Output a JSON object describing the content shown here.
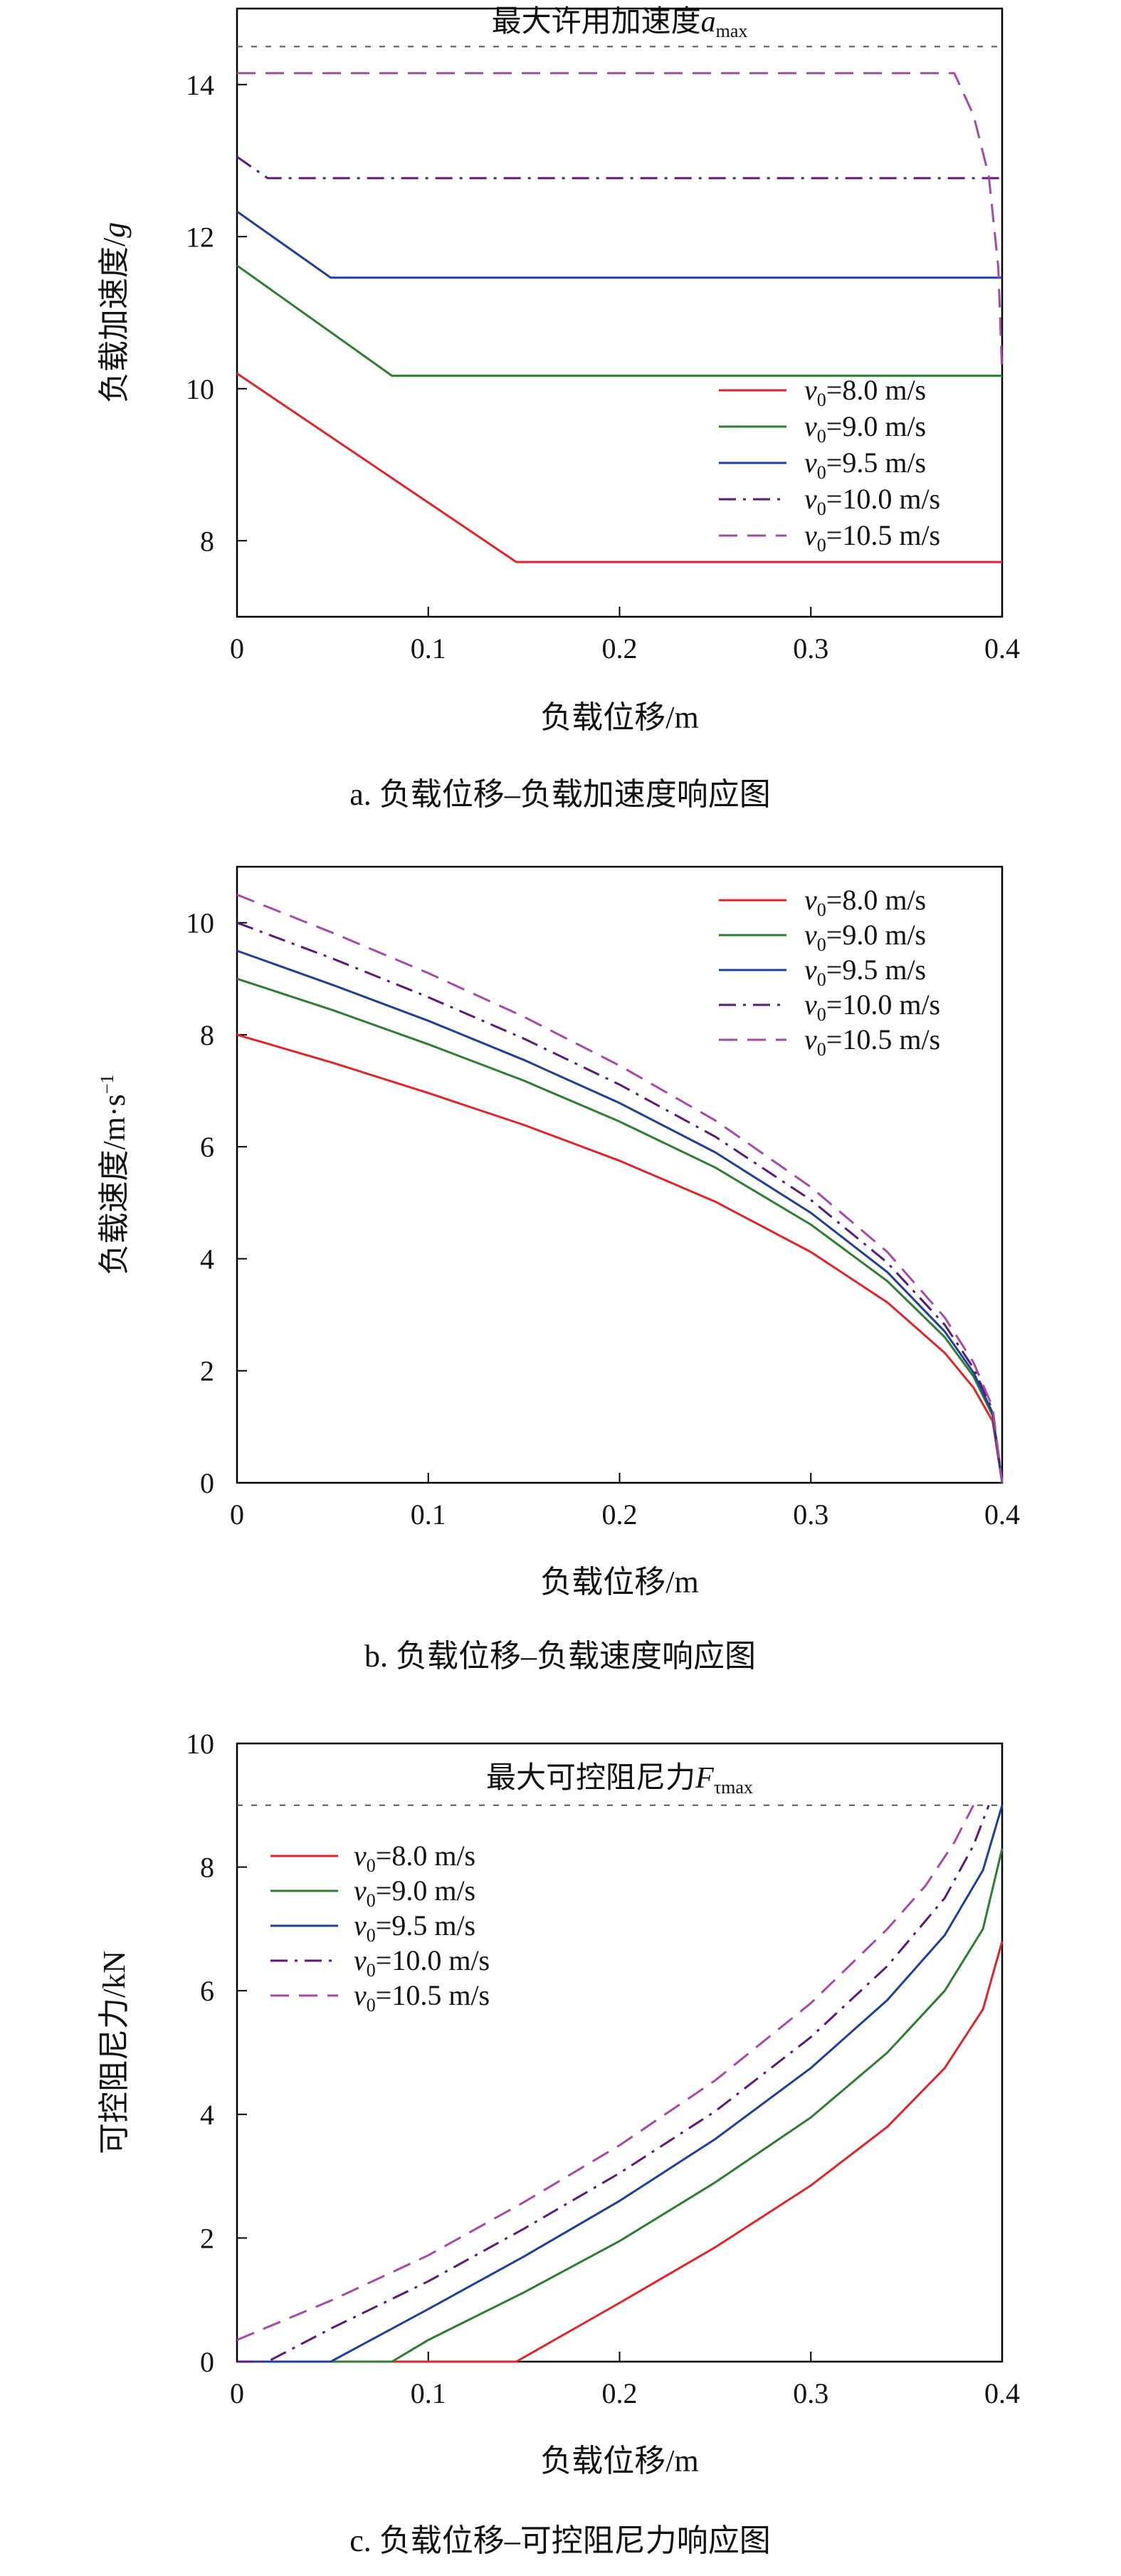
{
  "chart_data": [
    {
      "type": "line",
      "caption": "a. 负载位移–负载加速度响应图",
      "xlabel": "负载位移/m",
      "ylabel_main": "负载加速度/",
      "ylabel_unit": "g",
      "xlim": [
        0,
        0.4
      ],
      "ylim": [
        7,
        15
      ],
      "xticks": [
        0,
        0.1,
        0.2,
        0.3,
        0.4
      ],
      "xtick_labels": [
        "0",
        "0.1",
        "0.2",
        "0.3",
        "0.4"
      ],
      "yticks": [
        8,
        10,
        12,
        14
      ],
      "ytick_labels": [
        "8",
        "10",
        "12",
        "14"
      ],
      "legend_position": "bottom-right",
      "annotation": {
        "main": "最大许用加速度",
        "italic": "a",
        "sub": "max"
      },
      "reference_line": {
        "y": 14.5
      },
      "series": [
        {
          "name": "v0=8.0 m/s",
          "legend_v": "v",
          "legend_sub": "0",
          "legend_rest": "=8.0 m/s",
          "color": "#e0252a",
          "dash": "solid",
          "x": [
            0,
            0.146,
            0.4
          ],
          "y": [
            10.2,
            7.72,
            7.72
          ]
        },
        {
          "name": "v0=9.0 m/s",
          "legend_v": "v",
          "legend_sub": "0",
          "legend_rest": "=9.0 m/s",
          "color": "#2e7d32",
          "dash": "solid",
          "x": [
            0,
            0.081,
            0.4
          ],
          "y": [
            11.62,
            10.17,
            10.17
          ]
        },
        {
          "name": "v0=9.5 m/s",
          "legend_v": "v",
          "legend_sub": "0",
          "legend_rest": "=9.5 m/s",
          "color": "#1f3f9a",
          "dash": "solid",
          "x": [
            0,
            0.049,
            0.4
          ],
          "y": [
            12.33,
            11.46,
            11.46
          ]
        },
        {
          "name": "v0=10.0 m/s",
          "legend_v": "v",
          "legend_sub": "0",
          "legend_rest": "=10.0 m/s",
          "color": "#5b1a7a",
          "dash": "dashdot",
          "x": [
            0,
            0.016,
            0.4
          ],
          "y": [
            13.05,
            12.77,
            12.77
          ]
        },
        {
          "name": "v0=10.5 m/s",
          "legend_v": "v",
          "legend_sub": "0",
          "legend_rest": "=10.5 m/s",
          "color": "#a64aa6",
          "dash": "dashed",
          "x": [
            0,
            0.375,
            0.385,
            0.393,
            0.398,
            0.4
          ],
          "y": [
            14.15,
            14.15,
            13.6,
            12.8,
            11.6,
            10.2
          ]
        }
      ]
    },
    {
      "type": "line",
      "caption": "b. 负载位移–负载速度响应图",
      "xlabel": "负载位移/m",
      "ylabel_main": "负载速度/m·s",
      "ylabel_unit": "−1",
      "xlim": [
        0,
        0.4
      ],
      "ylim": [
        0,
        11
      ],
      "xticks": [
        0,
        0.1,
        0.2,
        0.3,
        0.4
      ],
      "xtick_labels": [
        "0",
        "0.1",
        "0.2",
        "0.3",
        "0.4"
      ],
      "yticks": [
        0,
        2,
        4,
        6,
        8,
        10
      ],
      "ytick_labels": [
        "0",
        "2",
        "4",
        "6",
        "8",
        "10"
      ],
      "legend_position": "top-right",
      "series": [
        {
          "name": "v0=8.0 m/s",
          "legend_v": "v",
          "legend_sub": "0",
          "legend_rest": "=8.0 m/s",
          "color": "#e0252a",
          "dash": "solid",
          "x": [
            0,
            0.05,
            0.1,
            0.15,
            0.2,
            0.25,
            0.3,
            0.34,
            0.37,
            0.385,
            0.395,
            0.4
          ],
          "y": [
            8.0,
            7.5,
            6.96,
            6.39,
            5.75,
            5.02,
            4.12,
            3.22,
            2.32,
            1.7,
            1.1,
            0.0
          ]
        },
        {
          "name": "v0=9.0 m/s",
          "legend_v": "v",
          "legend_sub": "0",
          "legend_rest": "=9.0 m/s",
          "color": "#2e7d32",
          "dash": "solid",
          "x": [
            0,
            0.05,
            0.1,
            0.15,
            0.2,
            0.25,
            0.3,
            0.34,
            0.37,
            0.385,
            0.395,
            0.4
          ],
          "y": [
            9.0,
            8.44,
            7.83,
            7.18,
            6.45,
            5.63,
            4.61,
            3.6,
            2.6,
            1.9,
            1.2,
            0.0
          ]
        },
        {
          "name": "v0=9.5 m/s",
          "legend_v": "v",
          "legend_sub": "0",
          "legend_rest": "=9.5 m/s",
          "color": "#1f3f9a",
          "dash": "solid",
          "x": [
            0,
            0.05,
            0.1,
            0.15,
            0.2,
            0.25,
            0.3,
            0.34,
            0.37,
            0.385,
            0.395,
            0.4
          ],
          "y": [
            9.5,
            8.89,
            8.25,
            7.55,
            6.78,
            5.9,
            4.82,
            3.76,
            2.7,
            1.97,
            1.25,
            0.0
          ]
        },
        {
          "name": "v0=10.0 m/s",
          "legend_v": "v",
          "legend_sub": "0",
          "legend_rest": "=10.0 m/s",
          "color": "#5b1a7a",
          "dash": "dashdot",
          "x": [
            0,
            0.05,
            0.1,
            0.15,
            0.2,
            0.25,
            0.3,
            0.34,
            0.37,
            0.385,
            0.395,
            0.4
          ],
          "y": [
            10.0,
            9.36,
            8.67,
            7.93,
            7.11,
            6.18,
            5.05,
            3.93,
            2.82,
            2.05,
            1.3,
            0.0
          ]
        },
        {
          "name": "v0=10.5 m/s",
          "legend_v": "v",
          "legend_sub": "0",
          "legend_rest": "=10.5 m/s",
          "color": "#a64aa6",
          "dash": "dashed",
          "x": [
            0,
            0.05,
            0.1,
            0.15,
            0.2,
            0.25,
            0.3,
            0.34,
            0.37,
            0.385,
            0.395,
            0.4
          ],
          "y": [
            10.5,
            9.82,
            9.1,
            8.32,
            7.45,
            6.47,
            5.28,
            4.12,
            2.95,
            2.15,
            1.35,
            0.0
          ]
        }
      ]
    },
    {
      "type": "line",
      "caption": "c. 负载位移–可控阻尼力响应图",
      "xlabel": "负载位移/m",
      "ylabel_main": "可控阻尼力/kN",
      "ylabel_unit": "",
      "xlim": [
        0,
        0.4
      ],
      "ylim": [
        0,
        10
      ],
      "xticks": [
        0,
        0.1,
        0.2,
        0.3,
        0.4
      ],
      "xtick_labels": [
        "0",
        "0.1",
        "0.2",
        "0.3",
        "0.4"
      ],
      "yticks": [
        0,
        2,
        4,
        6,
        8,
        10
      ],
      "ytick_labels": [
        "0",
        "2",
        "4",
        "6",
        "8",
        "10"
      ],
      "legend_position": "top-left",
      "annotation": {
        "main": "最大可控阻尼力",
        "italic": "F",
        "sub": "τmax"
      },
      "reference_line": {
        "y": 9.0
      },
      "series": [
        {
          "name": "v0=8.0 m/s",
          "legend_v": "v",
          "legend_sub": "0",
          "legend_rest": "=8.0 m/s",
          "color": "#e0252a",
          "dash": "solid",
          "x": [
            0,
            0.146,
            0.2,
            0.25,
            0.3,
            0.34,
            0.37,
            0.39,
            0.4
          ],
          "y": [
            0,
            0,
            0.95,
            1.85,
            2.85,
            3.8,
            4.75,
            5.7,
            6.8
          ]
        },
        {
          "name": "v0=9.0 m/s",
          "legend_v": "v",
          "legend_sub": "0",
          "legend_rest": "=9.0 m/s",
          "color": "#2e7d32",
          "dash": "solid",
          "x": [
            0,
            0.081,
            0.1,
            0.15,
            0.2,
            0.25,
            0.3,
            0.34,
            0.37,
            0.39,
            0.4
          ],
          "y": [
            0,
            0,
            0.35,
            1.12,
            1.95,
            2.9,
            3.95,
            5.0,
            6.0,
            7.0,
            8.3
          ]
        },
        {
          "name": "v0=9.5 m/s",
          "legend_v": "v",
          "legend_sub": "0",
          "legend_rest": "=9.5 m/s",
          "color": "#1f3f9a",
          "dash": "solid",
          "x": [
            0,
            0.049,
            0.1,
            0.15,
            0.2,
            0.25,
            0.3,
            0.34,
            0.37,
            0.39,
            0.4
          ],
          "y": [
            0,
            0,
            0.85,
            1.7,
            2.6,
            3.6,
            4.75,
            5.85,
            6.9,
            7.95,
            9.0
          ]
        },
        {
          "name": "v0=10.0 m/s",
          "legend_v": "v",
          "legend_sub": "0",
          "legend_rest": "=10.0 m/s",
          "color": "#5b1a7a",
          "dash": "dashdot",
          "x": [
            0,
            0.016,
            0.05,
            0.1,
            0.15,
            0.2,
            0.25,
            0.3,
            0.34,
            0.37,
            0.385,
            0.393
          ],
          "y": [
            0,
            0,
            0.55,
            1.3,
            2.15,
            3.05,
            4.05,
            5.25,
            6.4,
            7.5,
            8.35,
            9.0
          ]
        },
        {
          "name": "v0=10.5 m/s",
          "legend_v": "v",
          "legend_sub": "0",
          "legend_rest": "=10.5 m/s",
          "color": "#a64aa6",
          "dash": "dashed",
          "x": [
            0,
            0.05,
            0.1,
            0.15,
            0.2,
            0.25,
            0.3,
            0.34,
            0.36,
            0.375,
            0.385
          ],
          "y": [
            0.35,
            1.0,
            1.72,
            2.58,
            3.5,
            4.55,
            5.8,
            7.0,
            7.7,
            8.4,
            9.0
          ]
        }
      ]
    }
  ]
}
